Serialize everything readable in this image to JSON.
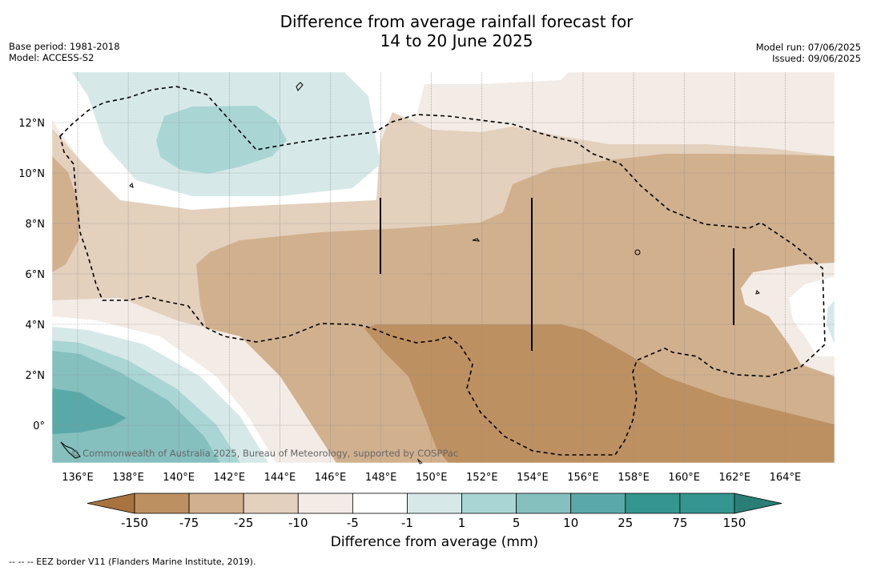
{
  "title": {
    "line1": "Difference from average rainfall forecast for",
    "line2": "14 to 20 June 2025"
  },
  "meta": {
    "base_period": "Base period: 1981-2018",
    "model": "Model: ACCESS-S2",
    "model_run": "Model run: 07/06/2025",
    "issued": "Issued: 09/06/2025"
  },
  "map": {
    "lon_labels": [
      "136°E",
      "138°E",
      "140°E",
      "142°E",
      "144°E",
      "146°E",
      "148°E",
      "150°E",
      "152°E",
      "154°E",
      "156°E",
      "158°E",
      "160°E",
      "162°E",
      "164°E"
    ],
    "lat_labels": [
      "12°N",
      "10°N",
      "8°N",
      "6°N",
      "4°N",
      "2°N",
      "0°"
    ],
    "copyright": "© Commonwealth of Australia 2025, Bureau of Meteorology, supported by COSPPac"
  },
  "colorbar": {
    "tick_labels": [
      "-150",
      "-75",
      "-25",
      "-10",
      "-5",
      "-1",
      "1",
      "5",
      "10",
      "25",
      "75",
      "150"
    ],
    "colors": [
      "#a8733f",
      "#bd9061",
      "#d1b08e",
      "#e3d0bd",
      "#f3ebe5",
      "#ffffff",
      "#d6e9e8",
      "#aad5d5",
      "#85c0bf",
      "#5aa9a8",
      "#35958f",
      "#2a7e78"
    ],
    "title": "Difference from average (mm)"
  },
  "footnote": "--  --  -- EEZ border V11 (Flanders Marine Institute, 2019)."
}
